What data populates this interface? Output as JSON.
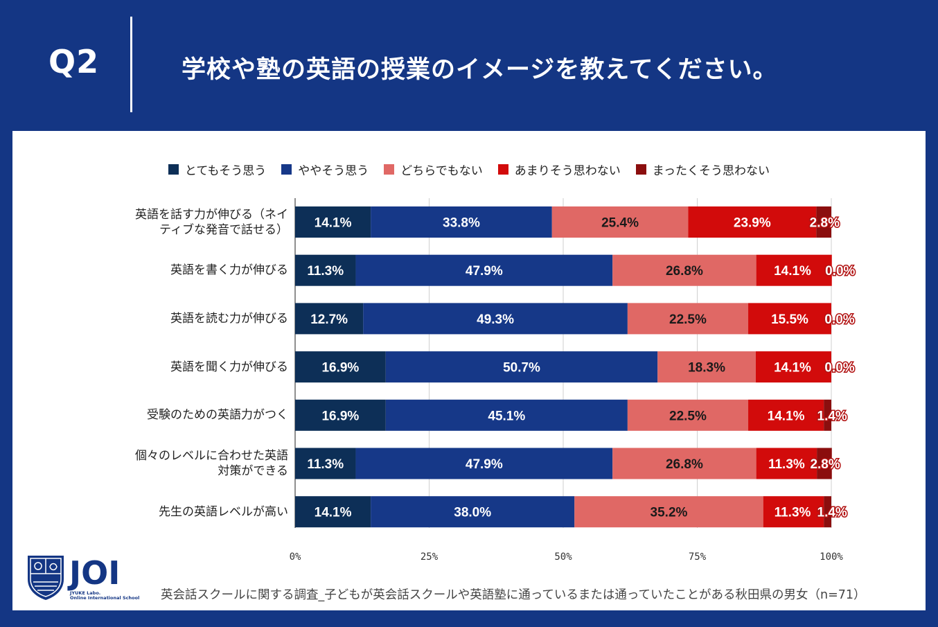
{
  "header": {
    "question_no": "Q2",
    "question_text": "学校や塾の英語の授業のイメージを教えてください。"
  },
  "colors": {
    "background": "#143684",
    "series": [
      "#0d2f57",
      "#163888",
      "#e06865",
      "#d20b0b",
      "#8b0e0e"
    ]
  },
  "chart_data": {
    "type": "bar",
    "orientation": "horizontal",
    "stacked": true,
    "categories": [
      "英語を話す力が伸びる（ネイティブな発音で話せる）",
      "英語を書く力が伸びる",
      "英語を読む力が伸びる",
      "英語を聞く力が伸びる",
      "受験のための英語力がつく",
      "個々のレベルに合わせた英語対策ができる",
      "先生の英語レベルが高い"
    ],
    "category_lines": [
      [
        "英語を話す力が伸びる（ネイ",
        "ティブな発音で話せる）"
      ],
      [
        "英語を書く力が伸びる"
      ],
      [
        "英語を読む力が伸びる"
      ],
      [
        "英語を聞く力が伸びる"
      ],
      [
        "受験のための英語力がつく"
      ],
      [
        "個々のレベルに合わせた英語",
        "対策ができる"
      ],
      [
        "先生の英語レベルが高い"
      ]
    ],
    "series": [
      {
        "name": "とてもそう思う",
        "values": [
          14.1,
          11.3,
          12.7,
          16.9,
          16.9,
          11.3,
          14.1
        ]
      },
      {
        "name": "ややそう思う",
        "values": [
          33.8,
          47.9,
          49.3,
          50.7,
          45.1,
          47.9,
          38.0
        ]
      },
      {
        "name": "どちらでもない",
        "values": [
          25.4,
          26.8,
          22.5,
          18.3,
          22.5,
          26.8,
          35.2
        ]
      },
      {
        "name": "あまりそう思わない",
        "values": [
          23.9,
          14.1,
          15.5,
          14.1,
          14.1,
          11.3,
          11.3
        ]
      },
      {
        "name": "まったくそう思わない",
        "values": [
          2.8,
          0.0,
          0.0,
          0.0,
          1.4,
          2.8,
          1.4
        ]
      }
    ],
    "xlim": [
      0,
      100
    ],
    "xticks": [
      "0%",
      "25%",
      "50%",
      "75%",
      "100%"
    ],
    "grid": true,
    "legend_position": "top"
  },
  "logo": {
    "text": "JOI",
    "sub1": "JYUKE Labo.",
    "sub2": "Online International School"
  },
  "source_note": "英会話スクールに関する調査_子どもが英会話スクールや英語塾に通っているまたは通っていたことがある秋田県の男女（n=71）"
}
